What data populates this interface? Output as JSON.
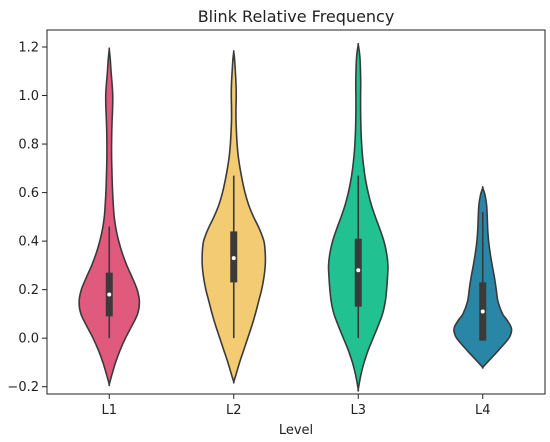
{
  "chart_data": {
    "type": "violin",
    "title": "Blink Relative Frequency",
    "xlabel": "Level",
    "ylabel": "",
    "ylim": [
      -0.23,
      1.27
    ],
    "yticks": [
      -0.2,
      0.0,
      0.2,
      0.4,
      0.6,
      0.8,
      1.0,
      1.2
    ],
    "ytick_labels": [
      "−0.2",
      "0.0",
      "0.2",
      "0.4",
      "0.6",
      "0.8",
      "1.0",
      "1.2"
    ],
    "categories": [
      "L1",
      "L2",
      "L3",
      "L4"
    ],
    "grid": false,
    "legend": "none",
    "series": [
      {
        "category": "L1",
        "color": "#e05a7d",
        "whisker": [
          0.0,
          0.46
        ],
        "q1": 0.09,
        "median": 0.18,
        "q3": 0.27,
        "density": [
          [
            -0.19,
            0.0
          ],
          [
            -0.15,
            0.06
          ],
          [
            -0.1,
            0.14
          ],
          [
            -0.05,
            0.24
          ],
          [
            0.0,
            0.36
          ],
          [
            0.05,
            0.5
          ],
          [
            0.1,
            0.63
          ],
          [
            0.15,
            0.67
          ],
          [
            0.2,
            0.62
          ],
          [
            0.25,
            0.51
          ],
          [
            0.3,
            0.39
          ],
          [
            0.35,
            0.29
          ],
          [
            0.4,
            0.21
          ],
          [
            0.45,
            0.15
          ],
          [
            0.5,
            0.11
          ],
          [
            0.55,
            0.09
          ],
          [
            0.6,
            0.075
          ],
          [
            0.65,
            0.065
          ],
          [
            0.7,
            0.058
          ],
          [
            0.75,
            0.052
          ],
          [
            0.8,
            0.052
          ],
          [
            0.85,
            0.056
          ],
          [
            0.9,
            0.064
          ],
          [
            0.95,
            0.075
          ],
          [
            1.0,
            0.078
          ],
          [
            1.05,
            0.062
          ],
          [
            1.1,
            0.04
          ],
          [
            1.15,
            0.022
          ],
          [
            1.19,
            0.0
          ]
        ]
      },
      {
        "category": "L2",
        "color": "#f2cb72",
        "whisker": [
          0.0,
          0.67
        ],
        "q1": 0.23,
        "median": 0.33,
        "q3": 0.44,
        "density": [
          [
            -0.18,
            0.0
          ],
          [
            -0.15,
            0.05
          ],
          [
            -0.1,
            0.13
          ],
          [
            -0.05,
            0.22
          ],
          [
            0.0,
            0.31
          ],
          [
            0.05,
            0.4
          ],
          [
            0.1,
            0.48
          ],
          [
            0.15,
            0.55
          ],
          [
            0.2,
            0.62
          ],
          [
            0.25,
            0.67
          ],
          [
            0.3,
            0.7
          ],
          [
            0.35,
            0.7
          ],
          [
            0.4,
            0.67
          ],
          [
            0.45,
            0.57
          ],
          [
            0.5,
            0.44
          ],
          [
            0.55,
            0.33
          ],
          [
            0.6,
            0.25
          ],
          [
            0.65,
            0.19
          ],
          [
            0.7,
            0.14
          ],
          [
            0.75,
            0.1
          ],
          [
            0.8,
            0.075
          ],
          [
            0.85,
            0.06
          ],
          [
            0.9,
            0.05
          ],
          [
            0.95,
            0.05
          ],
          [
            1.0,
            0.055
          ],
          [
            1.05,
            0.05
          ],
          [
            1.1,
            0.035
          ],
          [
            1.15,
            0.018
          ],
          [
            1.18,
            0.0
          ]
        ]
      },
      {
        "category": "L3",
        "color": "#21c192",
        "whisker": [
          0.0,
          0.67
        ],
        "q1": 0.13,
        "median": 0.28,
        "q3": 0.41,
        "density": [
          [
            -0.21,
            0.0
          ],
          [
            -0.15,
            0.06
          ],
          [
            -0.1,
            0.13
          ],
          [
            -0.05,
            0.22
          ],
          [
            0.0,
            0.33
          ],
          [
            0.05,
            0.44
          ],
          [
            0.1,
            0.54
          ],
          [
            0.15,
            0.6
          ],
          [
            0.2,
            0.63
          ],
          [
            0.25,
            0.65
          ],
          [
            0.3,
            0.66
          ],
          [
            0.35,
            0.63
          ],
          [
            0.4,
            0.57
          ],
          [
            0.45,
            0.48
          ],
          [
            0.5,
            0.38
          ],
          [
            0.55,
            0.29
          ],
          [
            0.6,
            0.22
          ],
          [
            0.65,
            0.165
          ],
          [
            0.7,
            0.125
          ],
          [
            0.75,
            0.095
          ],
          [
            0.8,
            0.075
          ],
          [
            0.85,
            0.062
          ],
          [
            0.9,
            0.055
          ],
          [
            0.95,
            0.052
          ],
          [
            1.0,
            0.052
          ],
          [
            1.05,
            0.055
          ],
          [
            1.1,
            0.05
          ],
          [
            1.15,
            0.04
          ],
          [
            1.18,
            0.025
          ],
          [
            1.21,
            0.0
          ]
        ]
      },
      {
        "category": "L4",
        "color": "#2a86a6",
        "whisker": [
          -0.01,
          0.52
        ],
        "q1": -0.01,
        "median": 0.11,
        "q3": 0.23,
        "density": [
          [
            -0.12,
            0.0
          ],
          [
            -0.1,
            0.1
          ],
          [
            -0.05,
            0.35
          ],
          [
            0.0,
            0.58
          ],
          [
            0.03,
            0.64
          ],
          [
            0.05,
            0.62
          ],
          [
            0.08,
            0.52
          ],
          [
            0.1,
            0.44
          ],
          [
            0.15,
            0.34
          ],
          [
            0.2,
            0.3
          ],
          [
            0.25,
            0.26
          ],
          [
            0.3,
            0.21
          ],
          [
            0.35,
            0.165
          ],
          [
            0.4,
            0.13
          ],
          [
            0.45,
            0.11
          ],
          [
            0.5,
            0.1
          ],
          [
            0.55,
            0.085
          ],
          [
            0.59,
            0.05
          ],
          [
            0.62,
            0.0
          ]
        ]
      }
    ]
  }
}
